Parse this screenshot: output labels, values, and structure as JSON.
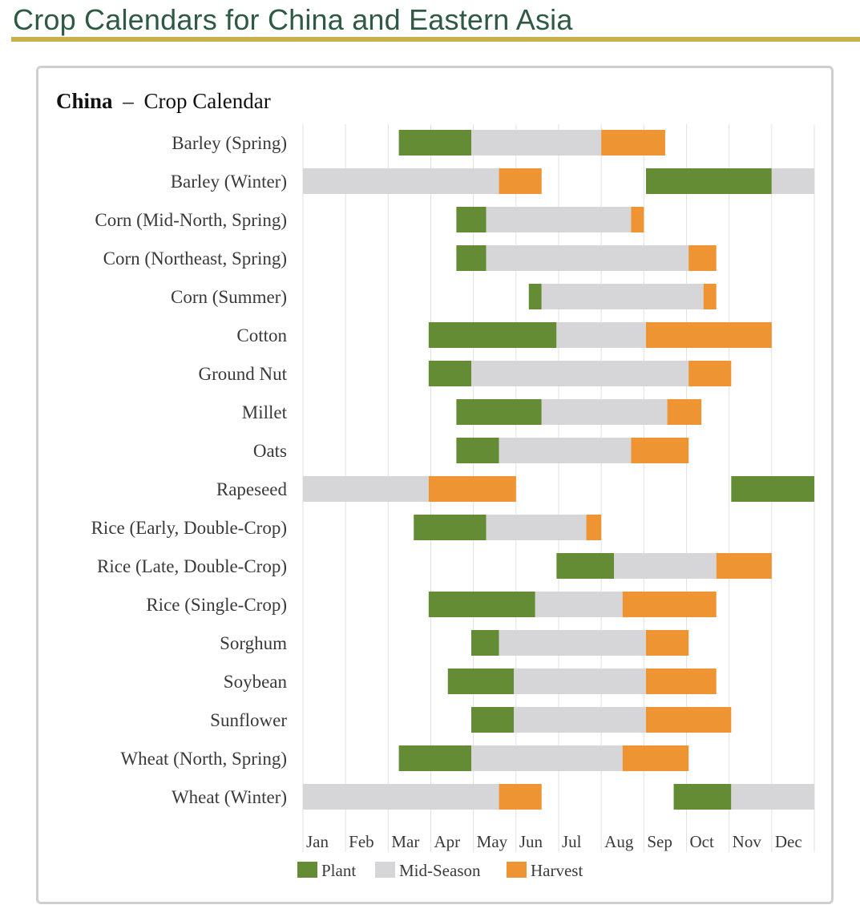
{
  "page": {
    "title": "Crop Calendars for China and Eastern Asia"
  },
  "colors": {
    "plant": "#638c35",
    "mid_season": "#d6d5d7",
    "harvest": "#ee9432",
    "title_text": "#2e5a43",
    "title_rule": "#c8b04a",
    "grid": "#e2e2e2",
    "label_text": "#3a3a3a"
  },
  "chart_data": {
    "type": "gantt",
    "title_bold": "China",
    "title_dash": "–",
    "title_rest": "Crop Calendar",
    "x_unit": "month (0 = start of Jan, 12 = end of Dec)",
    "xlim": [
      0,
      12
    ],
    "months": [
      "Jan",
      "Feb",
      "Mar",
      "Apr",
      "May",
      "Jun",
      "Jul",
      "Aug",
      "Sep",
      "Oct",
      "Nov",
      "Dec"
    ],
    "legend": [
      {
        "key": "plant",
        "label": "Plant"
      },
      {
        "key": "mid",
        "label": "Mid-Season"
      },
      {
        "key": "harvest",
        "label": "Harvest"
      }
    ],
    "crops": [
      {
        "name": "Barley (Spring)",
        "segments": [
          {
            "phase": "plant",
            "start": 2.25,
            "end": 3.95
          },
          {
            "phase": "mid",
            "start": 3.95,
            "end": 7.0
          },
          {
            "phase": "harvest",
            "start": 7.0,
            "end": 8.5
          }
        ]
      },
      {
        "name": "Barley (Winter)",
        "segments": [
          {
            "phase": "mid",
            "start": 0.0,
            "end": 4.6
          },
          {
            "phase": "harvest",
            "start": 4.6,
            "end": 5.6
          },
          {
            "phase": "plant",
            "start": 8.05,
            "end": 11.0
          },
          {
            "phase": "mid",
            "start": 11.0,
            "end": 12.0
          }
        ]
      },
      {
        "name": "Corn (Mid-North, Spring)",
        "segments": [
          {
            "phase": "plant",
            "start": 3.6,
            "end": 4.3
          },
          {
            "phase": "mid",
            "start": 4.3,
            "end": 7.7
          },
          {
            "phase": "harvest",
            "start": 7.7,
            "end": 8.0
          }
        ]
      },
      {
        "name": "Corn (Northeast, Spring)",
        "segments": [
          {
            "phase": "plant",
            "start": 3.6,
            "end": 4.3
          },
          {
            "phase": "mid",
            "start": 4.3,
            "end": 9.05
          },
          {
            "phase": "harvest",
            "start": 9.05,
            "end": 9.7
          }
        ]
      },
      {
        "name": "Corn (Summer)",
        "segments": [
          {
            "phase": "plant",
            "start": 5.3,
            "end": 5.6
          },
          {
            "phase": "mid",
            "start": 5.6,
            "end": 9.4
          },
          {
            "phase": "harvest",
            "start": 9.4,
            "end": 9.7
          }
        ]
      },
      {
        "name": "Cotton",
        "segments": [
          {
            "phase": "plant",
            "start": 2.95,
            "end": 5.95
          },
          {
            "phase": "mid",
            "start": 5.95,
            "end": 8.05
          },
          {
            "phase": "harvest",
            "start": 8.05,
            "end": 11.0
          }
        ]
      },
      {
        "name": "Ground Nut",
        "segments": [
          {
            "phase": "plant",
            "start": 2.95,
            "end": 3.95
          },
          {
            "phase": "mid",
            "start": 3.95,
            "end": 9.05
          },
          {
            "phase": "harvest",
            "start": 9.05,
            "end": 10.05
          }
        ]
      },
      {
        "name": "Millet",
        "segments": [
          {
            "phase": "plant",
            "start": 3.6,
            "end": 5.6
          },
          {
            "phase": "mid",
            "start": 5.6,
            "end": 8.55
          },
          {
            "phase": "harvest",
            "start": 8.55,
            "end": 9.35
          }
        ]
      },
      {
        "name": "Oats",
        "segments": [
          {
            "phase": "plant",
            "start": 3.6,
            "end": 4.6
          },
          {
            "phase": "mid",
            "start": 4.6,
            "end": 7.7
          },
          {
            "phase": "harvest",
            "start": 7.7,
            "end": 9.05
          }
        ]
      },
      {
        "name": "Rapeseed",
        "segments": [
          {
            "phase": "mid",
            "start": 0.0,
            "end": 2.95
          },
          {
            "phase": "harvest",
            "start": 2.95,
            "end": 5.0
          },
          {
            "phase": "plant",
            "start": 10.05,
            "end": 12.0
          }
        ]
      },
      {
        "name": "Rice (Early, Double-Crop)",
        "segments": [
          {
            "phase": "plant",
            "start": 2.6,
            "end": 4.3
          },
          {
            "phase": "mid",
            "start": 4.3,
            "end": 6.65
          },
          {
            "phase": "harvest",
            "start": 6.65,
            "end": 7.0
          }
        ]
      },
      {
        "name": "Rice (Late, Double-Crop)",
        "segments": [
          {
            "phase": "plant",
            "start": 5.95,
            "end": 7.3
          },
          {
            "phase": "mid",
            "start": 7.3,
            "end": 9.7
          },
          {
            "phase": "harvest",
            "start": 9.7,
            "end": 11.0
          }
        ]
      },
      {
        "name": "Rice (Single-Crop)",
        "segments": [
          {
            "phase": "plant",
            "start": 2.95,
            "end": 5.45
          },
          {
            "phase": "mid",
            "start": 5.45,
            "end": 7.5
          },
          {
            "phase": "harvest",
            "start": 7.5,
            "end": 9.7
          }
        ]
      },
      {
        "name": "Sorghum",
        "segments": [
          {
            "phase": "plant",
            "start": 3.95,
            "end": 4.6
          },
          {
            "phase": "mid",
            "start": 4.6,
            "end": 8.05
          },
          {
            "phase": "harvest",
            "start": 8.05,
            "end": 9.05
          }
        ]
      },
      {
        "name": "Soybean",
        "segments": [
          {
            "phase": "plant",
            "start": 3.4,
            "end": 4.95
          },
          {
            "phase": "mid",
            "start": 4.95,
            "end": 8.05
          },
          {
            "phase": "harvest",
            "start": 8.05,
            "end": 9.7
          }
        ]
      },
      {
        "name": "Sunflower",
        "segments": [
          {
            "phase": "plant",
            "start": 3.95,
            "end": 4.95
          },
          {
            "phase": "mid",
            "start": 4.95,
            "end": 8.05
          },
          {
            "phase": "harvest",
            "start": 8.05,
            "end": 10.05
          }
        ]
      },
      {
        "name": "Wheat (North, Spring)",
        "segments": [
          {
            "phase": "plant",
            "start": 2.25,
            "end": 3.95
          },
          {
            "phase": "mid",
            "start": 3.95,
            "end": 7.5
          },
          {
            "phase": "harvest",
            "start": 7.5,
            "end": 9.05
          }
        ]
      },
      {
        "name": "Wheat (Winter)",
        "segments": [
          {
            "phase": "mid",
            "start": 0.0,
            "end": 4.6
          },
          {
            "phase": "harvest",
            "start": 4.6,
            "end": 5.6
          },
          {
            "phase": "plant",
            "start": 8.7,
            "end": 10.05
          },
          {
            "phase": "mid",
            "start": 10.05,
            "end": 12.0
          }
        ]
      }
    ]
  }
}
